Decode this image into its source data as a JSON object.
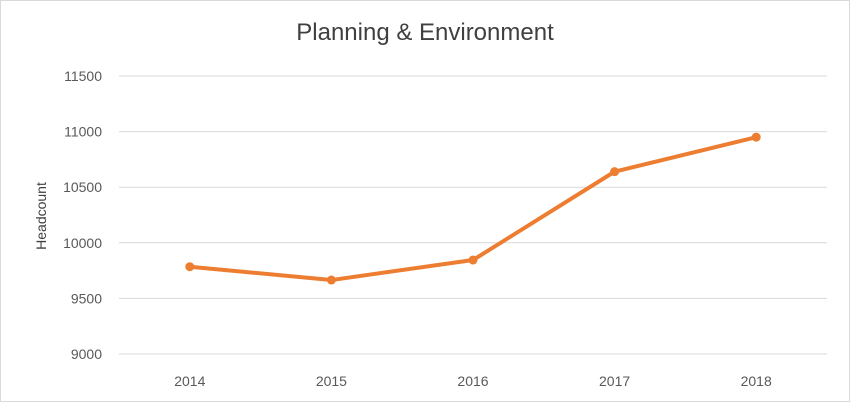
{
  "chart_data": {
    "type": "line",
    "title": "Planning & Environment",
    "xlabel": "",
    "ylabel": "Headcount",
    "categories": [
      "2014",
      "2015",
      "2016",
      "2017",
      "2018"
    ],
    "series": [
      {
        "values": [
          9785,
          9665,
          9845,
          10640,
          10950
        ]
      }
    ],
    "ylim": [
      9000,
      11500
    ],
    "yticks": [
      "9000",
      "9500",
      "10000",
      "10500",
      "11000",
      "11500"
    ],
    "grid": true,
    "line_color": "#ed7d31",
    "grid_color": "#d9d9d9",
    "text_color": "#595959"
  }
}
